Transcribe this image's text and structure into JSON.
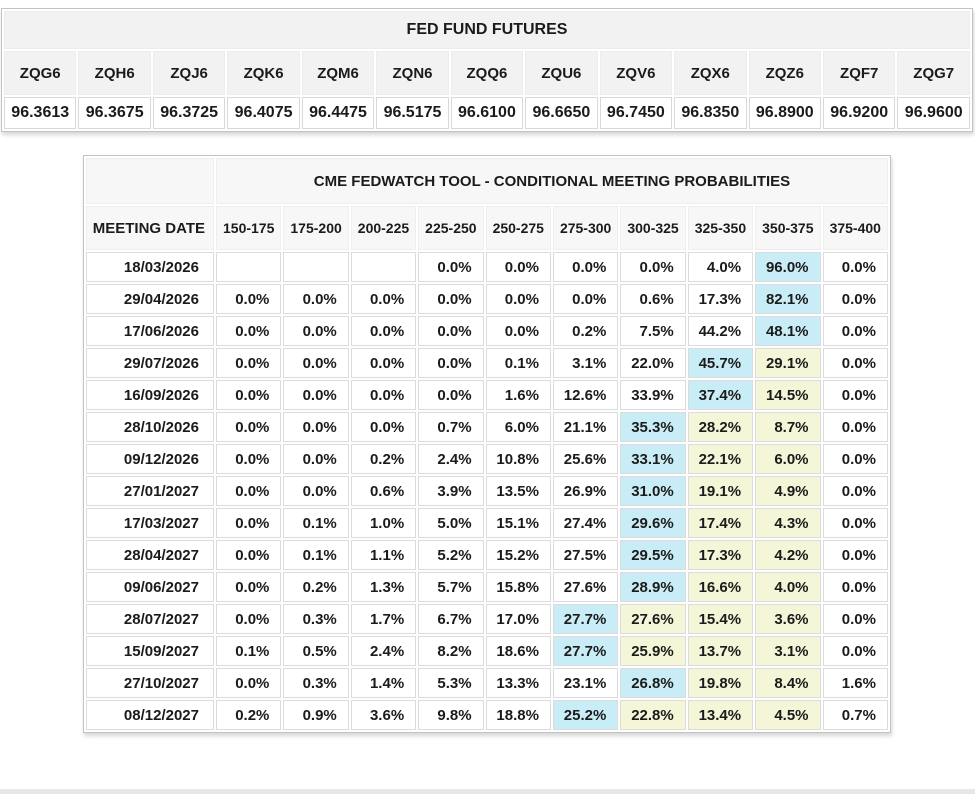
{
  "futures": {
    "title": "FED FUND FUTURES",
    "contracts": [
      {
        "symbol": "ZQG6",
        "price": "96.3613"
      },
      {
        "symbol": "ZQH6",
        "price": "96.3675"
      },
      {
        "symbol": "ZQJ6",
        "price": "96.3725"
      },
      {
        "symbol": "ZQK6",
        "price": "96.4075"
      },
      {
        "symbol": "ZQM6",
        "price": "96.4475"
      },
      {
        "symbol": "ZQN6",
        "price": "96.5175"
      },
      {
        "symbol": "ZQQ6",
        "price": "96.6100"
      },
      {
        "symbol": "ZQU6",
        "price": "96.6650"
      },
      {
        "symbol": "ZQV6",
        "price": "96.7450"
      },
      {
        "symbol": "ZQX6",
        "price": "96.8350"
      },
      {
        "symbol": "ZQZ6",
        "price": "96.8900"
      },
      {
        "symbol": "ZQF7",
        "price": "96.9200"
      },
      {
        "symbol": "ZQG7",
        "price": "96.9600"
      }
    ]
  },
  "fedwatch": {
    "title": "CME FEDWATCH TOOL - CONDITIONAL MEETING PROBABILITIES",
    "date_header": "MEETING DATE",
    "rate_ranges": [
      "150-175",
      "175-200",
      "200-225",
      "225-250",
      "250-275",
      "275-300",
      "300-325",
      "325-350",
      "350-375",
      "375-400"
    ],
    "rows": [
      {
        "date": "18/03/2026",
        "values": [
          "",
          "",
          "",
          "0.0%",
          "0.0%",
          "0.0%",
          "0.0%",
          "4.0%",
          "96.0%",
          "0.0%"
        ],
        "hl": [
          "",
          "",
          "",
          "",
          "",
          "",
          "",
          "",
          "c",
          ""
        ]
      },
      {
        "date": "29/04/2026",
        "values": [
          "0.0%",
          "0.0%",
          "0.0%",
          "0.0%",
          "0.0%",
          "0.0%",
          "0.6%",
          "17.3%",
          "82.1%",
          "0.0%"
        ],
        "hl": [
          "",
          "",
          "",
          "",
          "",
          "",
          "",
          "",
          "c",
          ""
        ]
      },
      {
        "date": "17/06/2026",
        "values": [
          "0.0%",
          "0.0%",
          "0.0%",
          "0.0%",
          "0.0%",
          "0.2%",
          "7.5%",
          "44.2%",
          "48.1%",
          "0.0%"
        ],
        "hl": [
          "",
          "",
          "",
          "",
          "",
          "",
          "",
          "",
          "c",
          ""
        ]
      },
      {
        "date": "29/07/2026",
        "values": [
          "0.0%",
          "0.0%",
          "0.0%",
          "0.0%",
          "0.1%",
          "3.1%",
          "22.0%",
          "45.7%",
          "29.1%",
          "0.0%"
        ],
        "hl": [
          "",
          "",
          "",
          "",
          "",
          "",
          "",
          "c",
          "y",
          ""
        ]
      },
      {
        "date": "16/09/2026",
        "values": [
          "0.0%",
          "0.0%",
          "0.0%",
          "0.0%",
          "1.6%",
          "12.6%",
          "33.9%",
          "37.4%",
          "14.5%",
          "0.0%"
        ],
        "hl": [
          "",
          "",
          "",
          "",
          "",
          "",
          "",
          "c",
          "y",
          ""
        ]
      },
      {
        "date": "28/10/2026",
        "values": [
          "0.0%",
          "0.0%",
          "0.0%",
          "0.7%",
          "6.0%",
          "21.1%",
          "35.3%",
          "28.2%",
          "8.7%",
          "0.0%"
        ],
        "hl": [
          "",
          "",
          "",
          "",
          "",
          "",
          "c",
          "y",
          "y",
          ""
        ]
      },
      {
        "date": "09/12/2026",
        "values": [
          "0.0%",
          "0.0%",
          "0.2%",
          "2.4%",
          "10.8%",
          "25.6%",
          "33.1%",
          "22.1%",
          "6.0%",
          "0.0%"
        ],
        "hl": [
          "",
          "",
          "",
          "",
          "",
          "",
          "c",
          "y",
          "y",
          ""
        ]
      },
      {
        "date": "27/01/2027",
        "values": [
          "0.0%",
          "0.0%",
          "0.6%",
          "3.9%",
          "13.5%",
          "26.9%",
          "31.0%",
          "19.1%",
          "4.9%",
          "0.0%"
        ],
        "hl": [
          "",
          "",
          "",
          "",
          "",
          "",
          "c",
          "y",
          "y",
          ""
        ]
      },
      {
        "date": "17/03/2027",
        "values": [
          "0.0%",
          "0.1%",
          "1.0%",
          "5.0%",
          "15.1%",
          "27.4%",
          "29.6%",
          "17.4%",
          "4.3%",
          "0.0%"
        ],
        "hl": [
          "",
          "",
          "",
          "",
          "",
          "",
          "c",
          "y",
          "y",
          ""
        ]
      },
      {
        "date": "28/04/2027",
        "values": [
          "0.0%",
          "0.1%",
          "1.1%",
          "5.2%",
          "15.2%",
          "27.5%",
          "29.5%",
          "17.3%",
          "4.2%",
          "0.0%"
        ],
        "hl": [
          "",
          "",
          "",
          "",
          "",
          "",
          "c",
          "y",
          "y",
          ""
        ]
      },
      {
        "date": "09/06/2027",
        "values": [
          "0.0%",
          "0.2%",
          "1.3%",
          "5.7%",
          "15.8%",
          "27.6%",
          "28.9%",
          "16.6%",
          "4.0%",
          "0.0%"
        ],
        "hl": [
          "",
          "",
          "",
          "",
          "",
          "",
          "c",
          "y",
          "y",
          ""
        ]
      },
      {
        "date": "28/07/2027",
        "values": [
          "0.0%",
          "0.3%",
          "1.7%",
          "6.7%",
          "17.0%",
          "27.7%",
          "27.6%",
          "15.4%",
          "3.6%",
          "0.0%"
        ],
        "hl": [
          "",
          "",
          "",
          "",
          "",
          "c",
          "y",
          "y",
          "y",
          ""
        ]
      },
      {
        "date": "15/09/2027",
        "values": [
          "0.1%",
          "0.5%",
          "2.4%",
          "8.2%",
          "18.6%",
          "27.7%",
          "25.9%",
          "13.7%",
          "3.1%",
          "0.0%"
        ],
        "hl": [
          "",
          "",
          "",
          "",
          "",
          "c",
          "y",
          "y",
          "y",
          ""
        ]
      },
      {
        "date": "27/10/2027",
        "values": [
          "0.0%",
          "0.3%",
          "1.4%",
          "5.3%",
          "13.3%",
          "23.1%",
          "26.8%",
          "19.8%",
          "8.4%",
          "1.6%"
        ],
        "hl": [
          "",
          "",
          "",
          "",
          "",
          "",
          "c",
          "y",
          "y",
          ""
        ]
      },
      {
        "date": "08/12/2027",
        "values": [
          "0.2%",
          "0.9%",
          "3.6%",
          "9.8%",
          "18.8%",
          "25.2%",
          "22.8%",
          "13.4%",
          "4.5%",
          "0.7%"
        ],
        "hl": [
          "",
          "",
          "",
          "",
          "",
          "c",
          "y",
          "y",
          "y",
          ""
        ]
      }
    ]
  },
  "colors": {
    "highlight_cyan": "#c9edf6",
    "highlight_yellow": "#f5f5d8",
    "header_gray": "#f2f2f2",
    "grid_border": "#dcdcdc"
  }
}
